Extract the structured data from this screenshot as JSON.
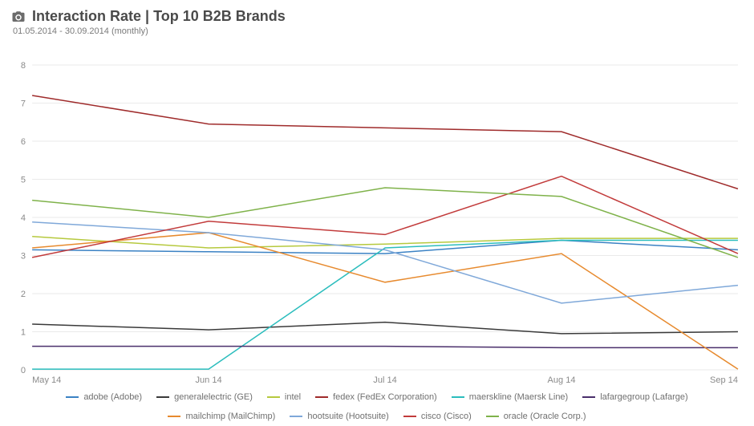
{
  "header": {
    "icon": "camera-icon",
    "title": "Interaction Rate | Top 10 B2B Brands",
    "subtitle": "01.05.2014 - 30.09.2014 (monthly)"
  },
  "chart": {
    "type": "line",
    "background_color": "#ffffff",
    "grid_color": "#eaeaea",
    "axis_label_color": "#8a8a8a",
    "axis_fontsize": 11,
    "title_fontsize": 18,
    "x_labels": [
      "May 14",
      "Jun 14",
      "Jul 14",
      "Aug 14",
      "Sep 14"
    ],
    "y_ticks": [
      0,
      1,
      2,
      3,
      4,
      5,
      6,
      7,
      8
    ],
    "ylim": [
      0,
      8.4
    ],
    "line_width": 1.5,
    "series": [
      {
        "key": "adobe",
        "label": "adobe (Adobe)",
        "color": "#3b82c4",
        "values": [
          3.15,
          3.1,
          3.05,
          3.4,
          3.15
        ]
      },
      {
        "key": "generalelectric",
        "label": "generalelectric (GE)",
        "color": "#3a3a3a",
        "values": [
          1.2,
          1.05,
          1.25,
          0.95,
          1.0
        ]
      },
      {
        "key": "intel",
        "label": "intel",
        "color": "#b6c93e",
        "values": [
          3.5,
          3.2,
          3.3,
          3.45,
          3.45
        ]
      },
      {
        "key": "fedex",
        "label": "fedex (FedEx Corporation)",
        "color": "#9f2b2b",
        "values": [
          7.2,
          6.45,
          6.35,
          6.25,
          4.75
        ]
      },
      {
        "key": "maerskline",
        "label": "maerskline (Maersk Line)",
        "color": "#2bbdbd",
        "values": [
          0.02,
          0.02,
          3.2,
          3.4,
          3.4
        ]
      },
      {
        "key": "lafargegroup",
        "label": "lafargegroup (Lafarge)",
        "color": "#4a2f6b",
        "values": [
          0.62,
          0.62,
          0.62,
          0.58,
          0.58
        ]
      },
      {
        "key": "mailchimp",
        "label": "mailchimp (MailChimp)",
        "color": "#e78a2e",
        "values": [
          3.2,
          3.6,
          2.3,
          3.05,
          0.02
        ]
      },
      {
        "key": "hootsuite",
        "label": "hootsuite (Hootsuite)",
        "color": "#7fa8d9",
        "values": [
          3.88,
          3.6,
          3.15,
          1.75,
          2.22
        ]
      },
      {
        "key": "cisco",
        "label": "cisco (Cisco)",
        "color": "#c23b3b",
        "values": [
          2.95,
          3.9,
          3.55,
          5.08,
          3.05
        ]
      },
      {
        "key": "oracle",
        "label": "oracle (Oracle Corp.)",
        "color": "#7fb24a",
        "values": [
          4.45,
          4.0,
          4.78,
          4.55,
          2.95
        ]
      }
    ]
  }
}
